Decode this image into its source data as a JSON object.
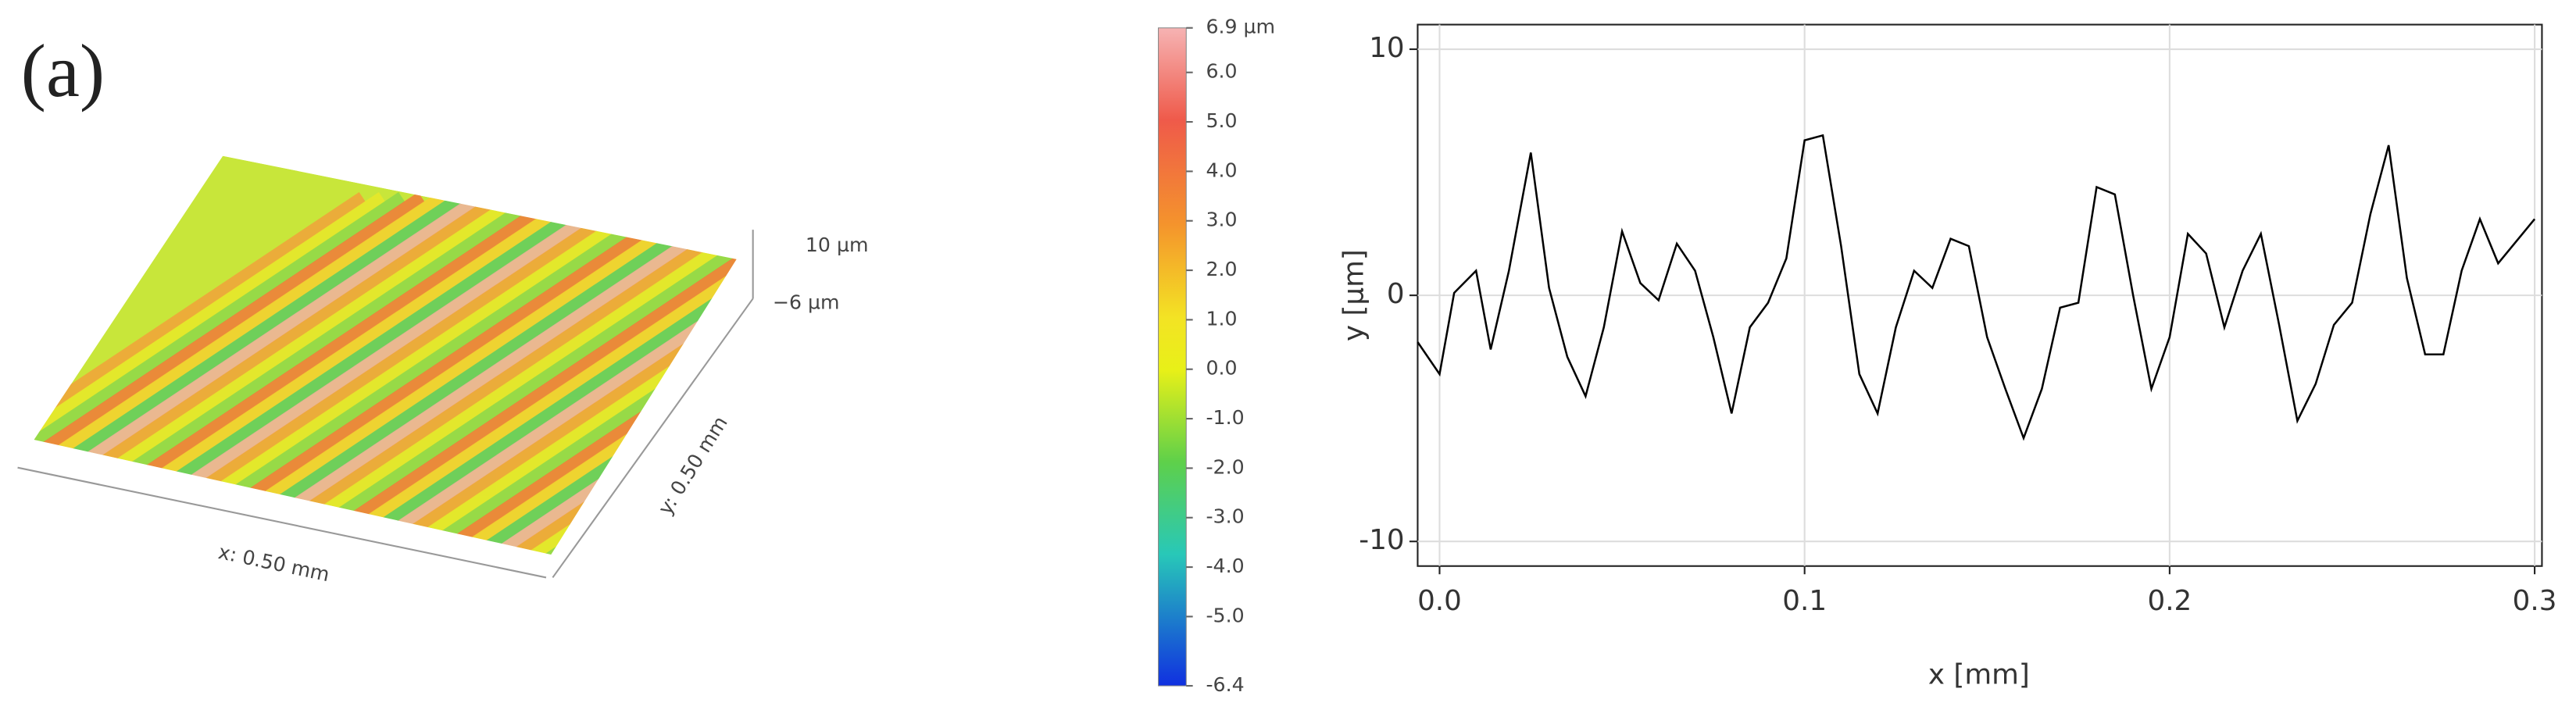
{
  "surface": {
    "panel_label": "(a)",
    "z_top_label": "10 µm",
    "z_bottom_label": "−6 µm",
    "x_label": "x: 0.50 mm",
    "y_label": "y: 0.50 mm"
  },
  "chart_data": [
    {
      "type": "line",
      "xlabel": "x [mm]",
      "ylabel": "y [µm]",
      "x": [
        -0.006,
        0.0,
        0.004,
        0.01,
        0.014,
        0.019,
        0.025,
        0.03,
        0.035,
        0.04,
        0.045,
        0.05,
        0.055,
        0.06,
        0.065,
        0.07,
        0.075,
        0.08,
        0.085,
        0.09,
        0.095,
        0.1,
        0.105,
        0.11,
        0.115,
        0.12,
        0.125,
        0.13,
        0.135,
        0.14,
        0.145,
        0.15,
        0.155,
        0.16,
        0.165,
        0.17,
        0.175,
        0.18,
        0.185,
        0.19,
        0.195,
        0.2,
        0.205,
        0.21,
        0.215,
        0.22,
        0.225,
        0.23,
        0.235,
        0.24,
        0.245,
        0.25,
        0.255,
        0.26,
        0.265,
        0.27,
        0.275,
        0.28,
        0.285,
        0.29,
        0.3
      ],
      "values": [
        -1.9,
        -3.2,
        0.1,
        1.0,
        -2.2,
        1.0,
        5.8,
        0.3,
        -2.5,
        -4.1,
        -1.3,
        2.6,
        0.5,
        -0.2,
        2.1,
        1.0,
        -1.7,
        -4.8,
        -1.3,
        -0.3,
        1.5,
        6.3,
        6.5,
        2.0,
        -3.2,
        -4.8,
        -1.3,
        1.0,
        0.3,
        2.3,
        2.0,
        -1.7,
        -3.8,
        -5.8,
        -3.8,
        -0.5,
        -0.3,
        4.4,
        4.1,
        0.0,
        -3.8,
        -1.7,
        2.5,
        1.7,
        -1.3,
        1.0,
        2.5,
        -1.2,
        -5.1,
        -3.6,
        -1.2,
        -0.3,
        3.3,
        6.1,
        0.7,
        -2.4,
        -2.4,
        1.0,
        3.1,
        1.3,
        3.1
      ],
      "color": "#000000",
      "xlim": [
        -0.006,
        0.302
      ],
      "ylim": [
        -11,
        11
      ],
      "xticks": [
        {
          "value": 0,
          "label": "0.0"
        },
        0.1,
        0.2,
        0.3
      ],
      "yticks": [
        10,
        0,
        -10
      ],
      "grid": true
    },
    {
      "type": "colorbar",
      "clim": [
        -6.4,
        6.9
      ],
      "cticks": [
        {
          "value": 6.9,
          "label": "6.9 µm"
        },
        {
          "value": 6,
          "label": "6.0"
        },
        {
          "value": 5,
          "label": "5.0"
        },
        {
          "value": 4,
          "label": "4.0"
        },
        {
          "value": 3,
          "label": "3.0"
        },
        {
          "value": 2,
          "label": "2.0"
        },
        {
          "value": 1,
          "label": "1.0"
        },
        {
          "value": 0,
          "label": "0.0"
        },
        {
          "value": -1,
          "label": "-1.0"
        },
        {
          "value": -2,
          "label": "-2.0"
        },
        {
          "value": -3,
          "label": "-3.0"
        },
        {
          "value": -4,
          "label": "-4.0"
        },
        {
          "value": -5,
          "label": "-5.0"
        },
        -6.4
      ]
    }
  ]
}
